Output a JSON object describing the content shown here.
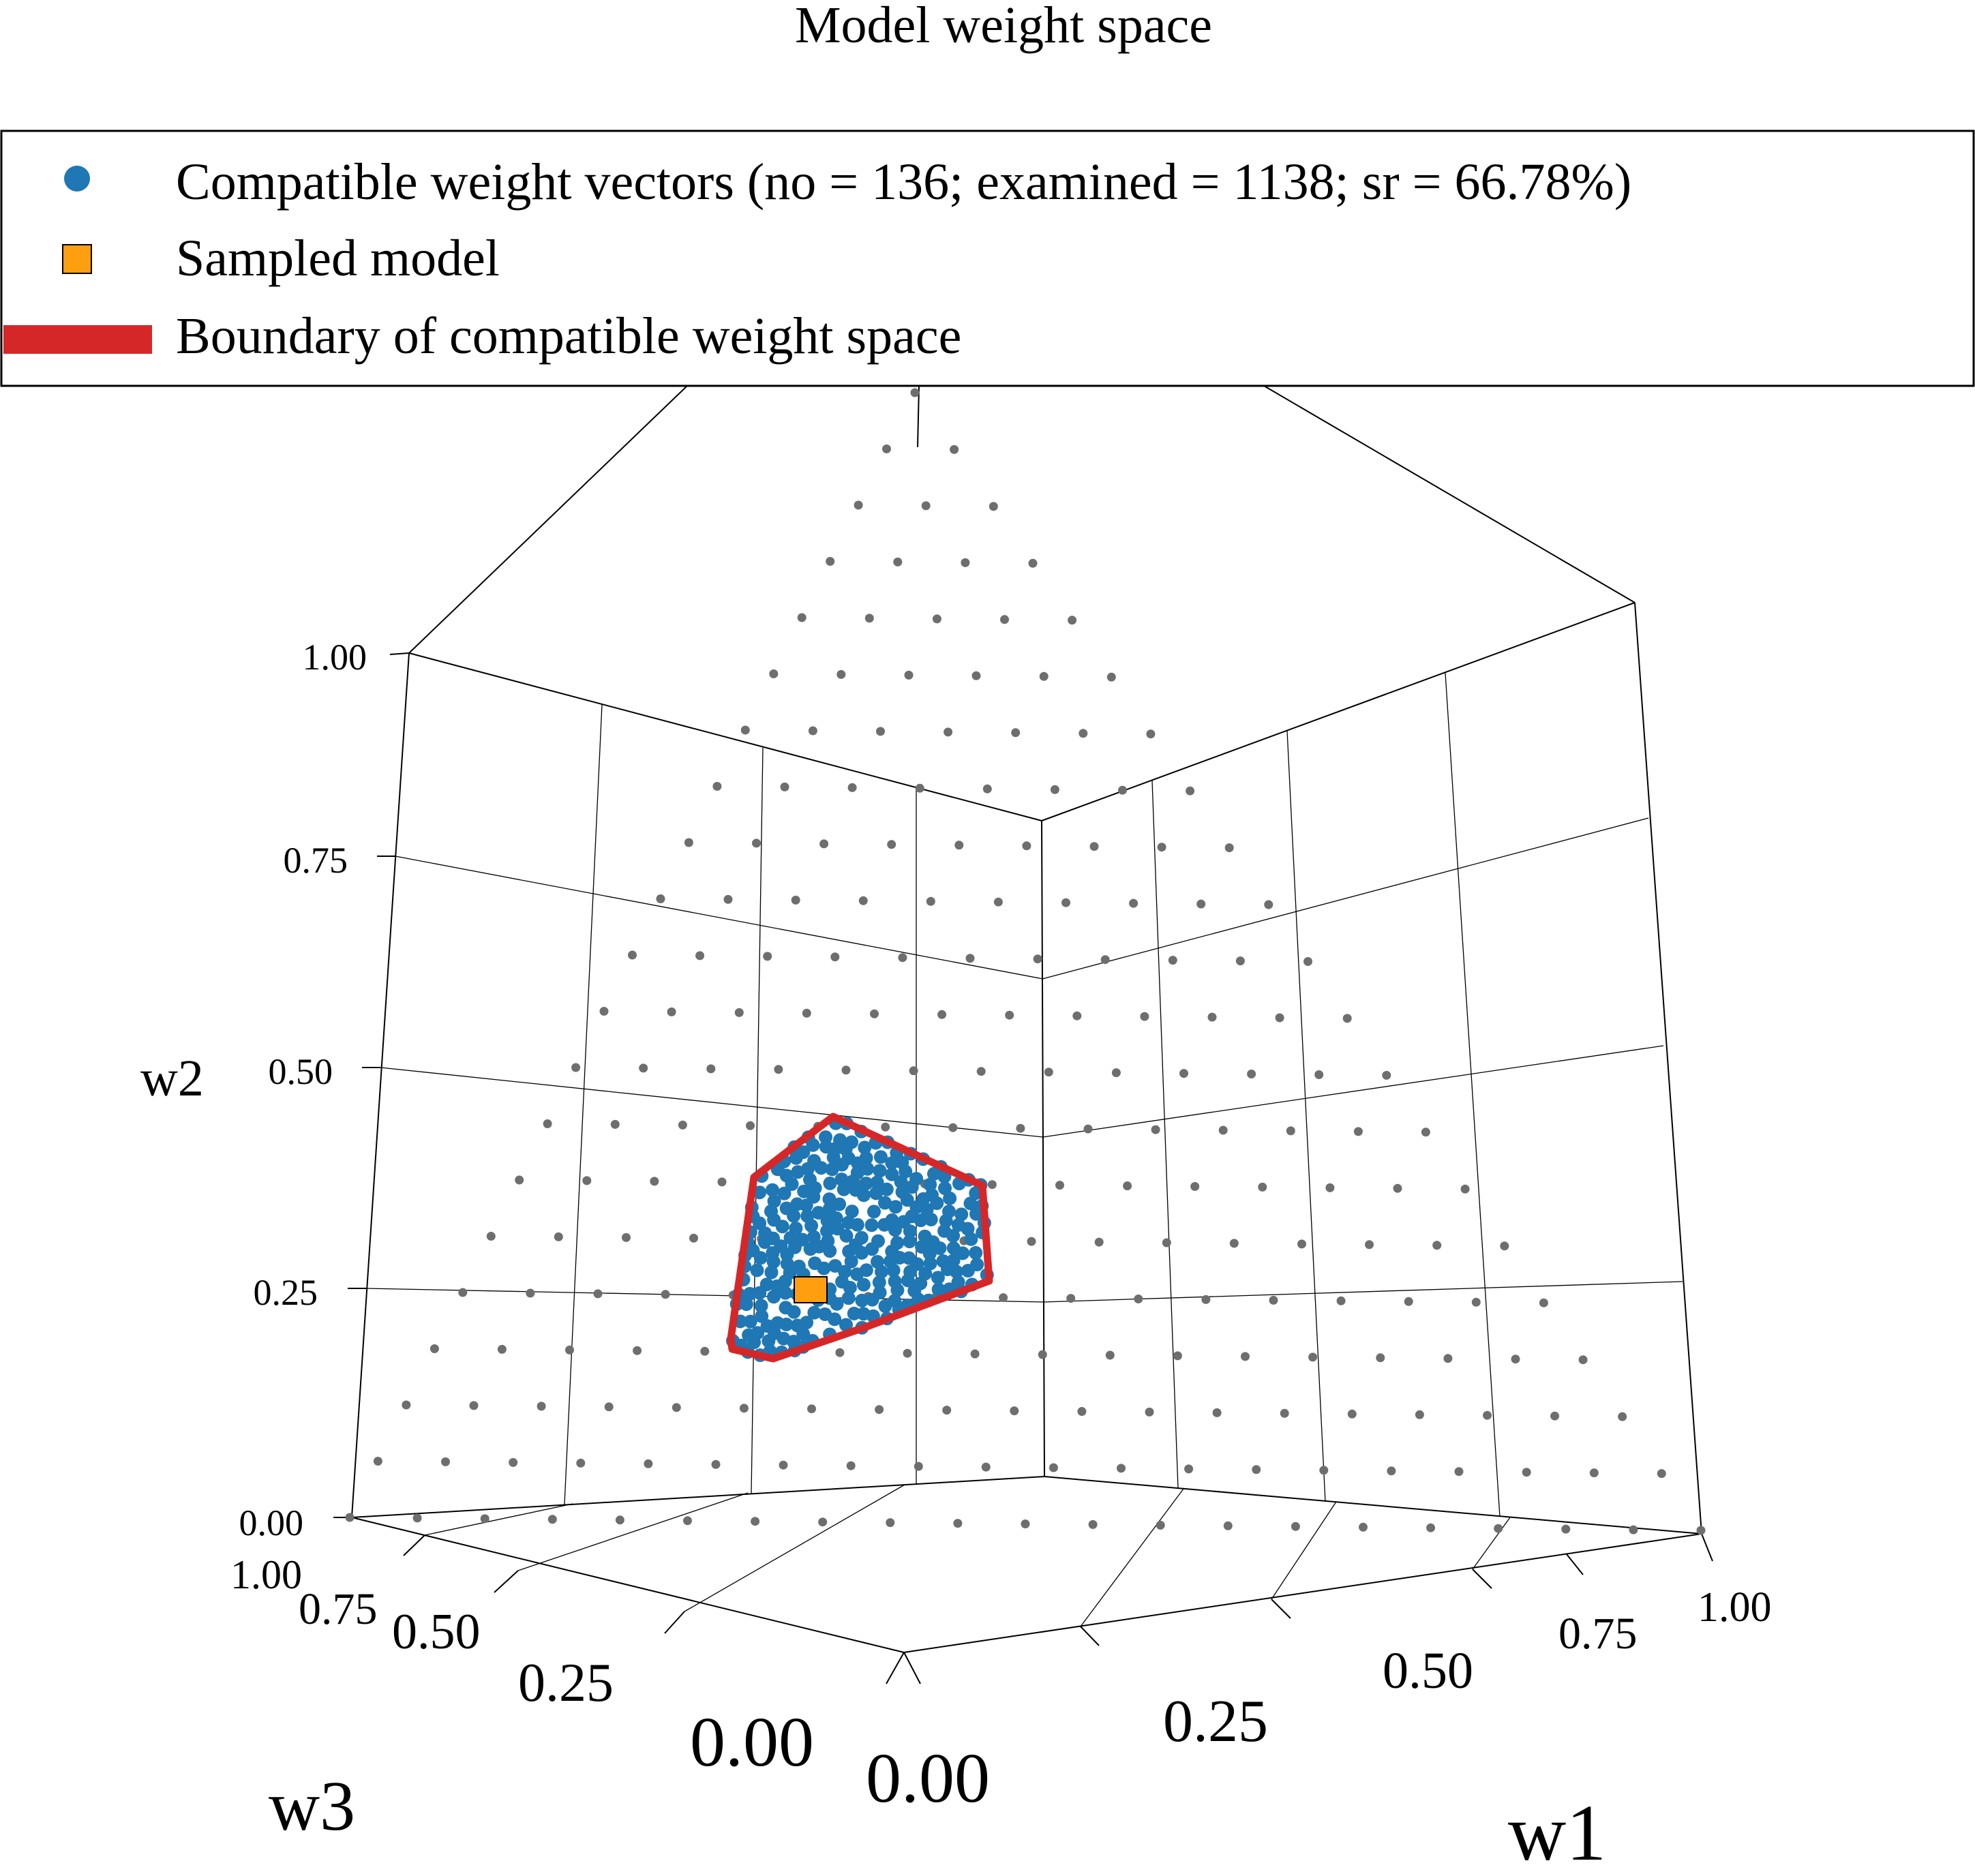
{
  "chart_data": {
    "type": "scatter",
    "title": "Model weight space",
    "legend": {
      "placement": "top",
      "entries": [
        {
          "label": "Compatible weight vectors (no = 136; examined = 1138; sr = 66.78%)",
          "marker": "circle",
          "color": "#1f77b4"
        },
        {
          "label": "Sampled model",
          "marker": "square",
          "color": "#ff9f0f"
        },
        {
          "label": "Boundary of compatible weight space",
          "marker": "line",
          "color": "#d62728"
        }
      ]
    },
    "axes": {
      "x": {
        "label": "w1",
        "range": [
          0,
          1
        ],
        "ticks": [
          "0.00",
          "0.25",
          "0.50",
          "0.75",
          "1.00"
        ]
      },
      "y": {
        "label": "w2",
        "range": [
          0,
          1
        ],
        "ticks": [
          "0.00",
          "0.25",
          "0.50",
          "0.75",
          "1.00"
        ]
      },
      "z": {
        "label": "w3",
        "range": [
          0,
          1
        ],
        "ticks": [
          "0.00",
          "0.25",
          "0.50",
          "0.75",
          "1.00"
        ]
      }
    },
    "grid": true,
    "simplex_grid": {
      "constraint": "w1 + w2 + w3 = 1",
      "step": 0.05,
      "color": "#6e6e6e"
    },
    "compatible_region": {
      "description_values_w1_w2_w3": [
        [
          0.38,
          0.45,
          0.17
        ],
        [
          0.42,
          0.32,
          0.26
        ],
        [
          0.47,
          0.21,
          0.32
        ],
        [
          0.3,
          0.13,
          0.57
        ],
        [
          0.18,
          0.12,
          0.7
        ],
        [
          0.11,
          0.17,
          0.72
        ],
        [
          0.1,
          0.25,
          0.65
        ],
        [
          0.2,
          0.37,
          0.43
        ]
      ]
    },
    "sampled_model": {
      "w1": 0.22,
      "w2": 0.22,
      "w3": 0.56
    },
    "colors": {
      "grey_points": "#6e6e6e",
      "compatible_points": "#1f77b4",
      "sampled_model": "#ff9f0f",
      "boundary": "#d62728"
    }
  }
}
